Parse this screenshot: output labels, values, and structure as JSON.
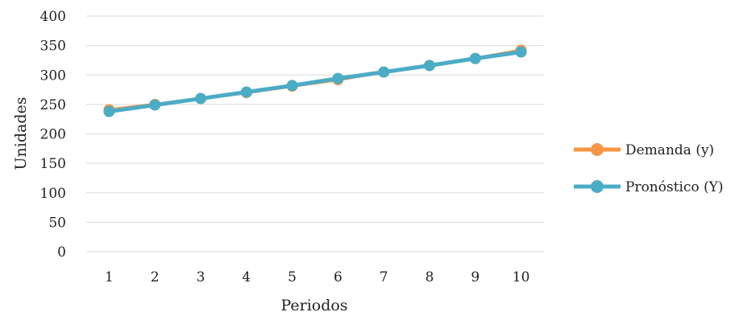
{
  "chart_data": {
    "type": "line",
    "xlabel": "Periodos",
    "ylabel": "Unidades",
    "x": [
      "1",
      "2",
      "3",
      "4",
      "5",
      "6",
      "7",
      "8",
      "9",
      "10"
    ],
    "ylim": [
      0,
      400
    ],
    "yticks": [
      "0",
      "50",
      "100",
      "150",
      "200",
      "250",
      "300",
      "350",
      "400"
    ],
    "grid": true,
    "legend_position": "right",
    "series": [
      {
        "name": "Demanda (y)",
        "color": "#F79646",
        "values": [
          241,
          250,
          260,
          270,
          281,
          292,
          305,
          316,
          328,
          342
        ]
      },
      {
        "name": "Pronóstico (Y)",
        "color": "#4BACC6",
        "values": [
          238,
          249,
          260,
          271,
          282,
          294,
          305,
          316,
          328,
          339
        ]
      }
    ]
  }
}
